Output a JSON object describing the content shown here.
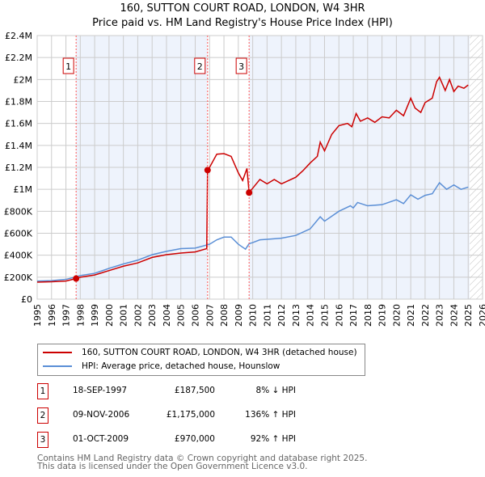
{
  "title": "160, SUTTON COURT ROAD, LONDON, W4 3HR",
  "subtitle": "Price paid vs. HM Land Registry's House Price Index (HPI)",
  "chart_data": {
    "type": "line",
    "title": "160, SUTTON COURT ROAD, LONDON, W4 3HR — Price paid vs. HM Land Registry's House Price Index (HPI)",
    "xlim": [
      1995,
      2026
    ],
    "ylim": [
      0,
      2400000
    ],
    "x_ticks": [
      "1995",
      "1996",
      "1997",
      "1998",
      "1999",
      "2000",
      "2001",
      "2002",
      "2003",
      "2004",
      "2005",
      "2006",
      "2007",
      "2008",
      "2009",
      "2010",
      "2011",
      "2012",
      "2013",
      "2014",
      "2015",
      "2016",
      "2017",
      "2018",
      "2019",
      "2020",
      "2021",
      "2022",
      "2023",
      "2024",
      "2025",
      "2026"
    ],
    "y_ticks": [
      {
        "v": 0,
        "l": "£0"
      },
      {
        "v": 200000,
        "l": "£200K"
      },
      {
        "v": 400000,
        "l": "£400K"
      },
      {
        "v": 600000,
        "l": "£600K"
      },
      {
        "v": 800000,
        "l": "£800K"
      },
      {
        "v": 1000000,
        "l": "£1M"
      },
      {
        "v": 1200000,
        "l": "£1.2M"
      },
      {
        "v": 1400000,
        "l": "£1.4M"
      },
      {
        "v": 1600000,
        "l": "£1.6M"
      },
      {
        "v": 1800000,
        "l": "£1.8M"
      },
      {
        "v": 2000000,
        "l": "£2M"
      },
      {
        "v": 2200000,
        "l": "£2.2M"
      },
      {
        "v": 2400000,
        "l": "£2.4M"
      }
    ],
    "grid": true,
    "series": [
      {
        "name": "160, SUTTON COURT ROAD, LONDON, W4 3HR (detached house)",
        "color": "#cc0000",
        "x": [
          1995,
          1996,
          1997,
          1997.71,
          1998,
          1999,
          2000,
          2001,
          2002,
          2003,
          2004,
          2005,
          2006,
          2006.8,
          2006.86,
          2007,
          2007.5,
          2008,
          2008.5,
          2009,
          2009.3,
          2009.6,
          2009.75,
          2010,
          2010.5,
          2011,
          2011.5,
          2012,
          2013,
          2013.5,
          2014,
          2014.5,
          2014.7,
          2015,
          2015.5,
          2016,
          2016.6,
          2016.9,
          2017.2,
          2017.5,
          2018,
          2018.5,
          2019,
          2019.5,
          2020,
          2020.5,
          2021,
          2021.3,
          2021.7,
          2022,
          2022.5,
          2022.8,
          2023,
          2023.4,
          2023.7,
          2024,
          2024.3,
          2024.7,
          2025
        ],
        "y": [
          155000,
          158000,
          165000,
          187500,
          200000,
          220000,
          260000,
          300000,
          330000,
          380000,
          405000,
          420000,
          430000,
          460000,
          1175000,
          1200000,
          1320000,
          1325000,
          1300000,
          1150000,
          1080000,
          1190000,
          970000,
          1010000,
          1090000,
          1050000,
          1090000,
          1050000,
          1110000,
          1170000,
          1240000,
          1300000,
          1430000,
          1350000,
          1500000,
          1580000,
          1600000,
          1570000,
          1690000,
          1620000,
          1650000,
          1610000,
          1660000,
          1650000,
          1720000,
          1670000,
          1830000,
          1740000,
          1700000,
          1790000,
          1830000,
          1980000,
          2020000,
          1900000,
          2000000,
          1890000,
          1940000,
          1920000,
          1950000
        ]
      },
      {
        "name": "HPI: Average price, detached house, Hounslow",
        "color": "#5b8fd6",
        "x": [
          1995,
          1996,
          1997,
          1997.71,
          1998,
          1999,
          2000,
          2001,
          2002,
          2003,
          2004,
          2005,
          2006,
          2006.86,
          2007,
          2007.5,
          2008,
          2008.5,
          2009,
          2009.5,
          2009.75,
          2010,
          2010.5,
          2011,
          2012,
          2013,
          2014,
          2014.7,
          2015,
          2016,
          2016.8,
          2017,
          2017.3,
          2018,
          2019,
          2020,
          2020.5,
          2021,
          2021.5,
          2022,
          2022.5,
          2023,
          2023.5,
          2024,
          2024.5,
          2025
        ],
        "y": [
          165000,
          168000,
          180000,
          203000,
          215000,
          235000,
          280000,
          320000,
          355000,
          405000,
          435000,
          460000,
          465000,
          495000,
          500000,
          540000,
          565000,
          565000,
          500000,
          455000,
          505000,
          515000,
          540000,
          545000,
          555000,
          580000,
          640000,
          750000,
          710000,
          800000,
          850000,
          830000,
          880000,
          850000,
          860000,
          905000,
          870000,
          950000,
          910000,
          945000,
          960000,
          1060000,
          1000000,
          1040000,
          1000000,
          1020000
        ]
      }
    ],
    "sales": [
      {
        "id": "1",
        "date": "18-SEP-1997",
        "x": 1997.71,
        "price": "£187,500",
        "value": 187500,
        "hpi": "8% ↓ HPI"
      },
      {
        "id": "2",
        "date": "09-NOV-2006",
        "x": 2006.86,
        "price": "£1,175,000",
        "value": 1175000,
        "hpi": "136% ↑ HPI"
      },
      {
        "id": "3",
        "date": "01-OCT-2009",
        "x": 2009.75,
        "price": "£970,000",
        "value": 970000,
        "hpi": "92% ↑ HPI"
      }
    ],
    "data_end": 2025.1
  },
  "legend": {
    "red": "160, SUTTON COURT ROAD, LONDON, W4 3HR (detached house)",
    "blue": "HPI: Average price, detached house, Hounslow"
  },
  "footer": {
    "line1": "Contains HM Land Registry data © Crown copyright and database right 2025.",
    "line2": "This data is licensed under the Open Government Licence v3.0."
  }
}
